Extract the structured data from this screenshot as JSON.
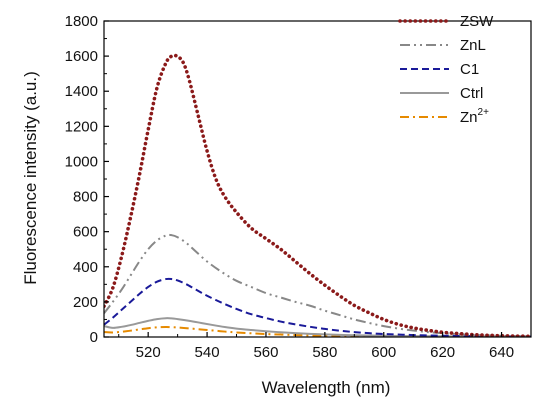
{
  "chart_data": {
    "type": "line",
    "title": "",
    "xlabel": "Wavelength (nm)",
    "ylabel": "Fluorescence intensity (a.u.)",
    "xlim": [
      505,
      650
    ],
    "ylim": [
      0,
      1800
    ],
    "x_ticks": [
      520,
      540,
      560,
      580,
      600,
      620,
      640
    ],
    "y_ticks": [
      0,
      200,
      400,
      600,
      800,
      1000,
      1200,
      1400,
      1600,
      1800
    ],
    "grid": false,
    "legend_position": "top-right",
    "series": [
      {
        "name": "ZSW",
        "name_base": "ZSW",
        "name_sup": "",
        "color": "#8B1A1A",
        "style": "dotted",
        "points": [
          [
            505,
            175
          ],
          [
            508,
            280
          ],
          [
            511,
            460
          ],
          [
            514,
            680
          ],
          [
            517,
            920
          ],
          [
            520,
            1180
          ],
          [
            523,
            1420
          ],
          [
            526,
            1560
          ],
          [
            528,
            1600
          ],
          [
            530,
            1598
          ],
          [
            532,
            1560
          ],
          [
            534,
            1460
          ],
          [
            537,
            1260
          ],
          [
            540,
            1060
          ],
          [
            543,
            900
          ],
          [
            546,
            800
          ],
          [
            550,
            710
          ],
          [
            555,
            620
          ],
          [
            560,
            560
          ],
          [
            565,
            500
          ],
          [
            570,
            430
          ],
          [
            575,
            360
          ],
          [
            580,
            295
          ],
          [
            585,
            235
          ],
          [
            590,
            180
          ],
          [
            595,
            138
          ],
          [
            600,
            100
          ],
          [
            605,
            72
          ],
          [
            610,
            52
          ],
          [
            615,
            38
          ],
          [
            620,
            27
          ],
          [
            625,
            20
          ],
          [
            630,
            14
          ],
          [
            635,
            10
          ],
          [
            640,
            7
          ],
          [
            645,
            5
          ],
          [
            650,
            4
          ]
        ]
      },
      {
        "name": "ZnL",
        "name_base": "ZnL",
        "name_sup": "",
        "color": "#888888",
        "style": "dashdotdot",
        "points": [
          [
            505,
            135
          ],
          [
            508,
            200
          ],
          [
            511,
            270
          ],
          [
            514,
            350
          ],
          [
            517,
            430
          ],
          [
            520,
            500
          ],
          [
            523,
            550
          ],
          [
            526,
            578
          ],
          [
            528,
            580
          ],
          [
            530,
            568
          ],
          [
            533,
            535
          ],
          [
            536,
            490
          ],
          [
            540,
            430
          ],
          [
            545,
            370
          ],
          [
            550,
            320
          ],
          [
            555,
            285
          ],
          [
            560,
            250
          ],
          [
            565,
            225
          ],
          [
            570,
            200
          ],
          [
            575,
            178
          ],
          [
            580,
            150
          ],
          [
            585,
            125
          ],
          [
            590,
            100
          ],
          [
            595,
            80
          ],
          [
            600,
            62
          ],
          [
            605,
            48
          ],
          [
            610,
            37
          ],
          [
            615,
            28
          ],
          [
            620,
            22
          ],
          [
            625,
            16
          ],
          [
            630,
            12
          ],
          [
            635,
            9
          ],
          [
            640,
            7
          ],
          [
            645,
            5
          ],
          [
            650,
            4
          ]
        ]
      },
      {
        "name": "C1",
        "name_base": "C1",
        "name_sup": "",
        "color": "#1A1A99",
        "style": "dashed",
        "points": [
          [
            505,
            70
          ],
          [
            508,
            110
          ],
          [
            511,
            155
          ],
          [
            514,
            200
          ],
          [
            517,
            245
          ],
          [
            520,
            285
          ],
          [
            523,
            315
          ],
          [
            526,
            330
          ],
          [
            528,
            330
          ],
          [
            530,
            322
          ],
          [
            533,
            300
          ],
          [
            536,
            272
          ],
          [
            540,
            235
          ],
          [
            545,
            195
          ],
          [
            550,
            160
          ],
          [
            555,
            130
          ],
          [
            560,
            108
          ],
          [
            565,
            88
          ],
          [
            570,
            72
          ],
          [
            575,
            58
          ],
          [
            580,
            46
          ],
          [
            585,
            36
          ],
          [
            590,
            28
          ],
          [
            595,
            22
          ],
          [
            600,
            17
          ],
          [
            610,
            11
          ],
          [
            620,
            7
          ],
          [
            630,
            5
          ],
          [
            640,
            3
          ],
          [
            650,
            2
          ]
        ]
      },
      {
        "name": "Ctrl",
        "name_base": "Ctrl",
        "name_sup": "",
        "color": "#999999",
        "style": "solid",
        "points": [
          [
            505,
            62
          ],
          [
            508,
            52
          ],
          [
            511,
            58
          ],
          [
            514,
            68
          ],
          [
            517,
            80
          ],
          [
            520,
            92
          ],
          [
            523,
            102
          ],
          [
            526,
            107
          ],
          [
            528,
            106
          ],
          [
            530,
            102
          ],
          [
            534,
            92
          ],
          [
            538,
            80
          ],
          [
            542,
            68
          ],
          [
            546,
            57
          ],
          [
            550,
            48
          ],
          [
            555,
            40
          ],
          [
            560,
            33
          ],
          [
            565,
            27
          ],
          [
            570,
            22
          ],
          [
            575,
            18
          ],
          [
            580,
            15
          ],
          [
            590,
            10
          ],
          [
            600,
            7
          ],
          [
            610,
            5
          ],
          [
            620,
            4
          ],
          [
            630,
            3
          ],
          [
            640,
            2
          ],
          [
            650,
            2
          ]
        ]
      },
      {
        "name": "Zn2+",
        "name_base": "Zn",
        "name_sup": "2+",
        "color": "#E68A00",
        "style": "dashdot",
        "points": [
          [
            505,
            28
          ],
          [
            508,
            26
          ],
          [
            511,
            30
          ],
          [
            514,
            36
          ],
          [
            517,
            43
          ],
          [
            520,
            50
          ],
          [
            523,
            55
          ],
          [
            526,
            57
          ],
          [
            528,
            56
          ],
          [
            530,
            54
          ],
          [
            534,
            49
          ],
          [
            538,
            43
          ],
          [
            542,
            37
          ],
          [
            546,
            31
          ],
          [
            550,
            26
          ],
          [
            555,
            21
          ],
          [
            560,
            17
          ],
          [
            565,
            14
          ],
          [
            570,
            11
          ],
          [
            575,
            9
          ],
          [
            580,
            7
          ],
          [
            590,
            5
          ],
          [
            600,
            4
          ],
          [
            610,
            3
          ],
          [
            620,
            2
          ],
          [
            630,
            2
          ],
          [
            640,
            1
          ],
          [
            650,
            1
          ]
        ]
      }
    ]
  }
}
